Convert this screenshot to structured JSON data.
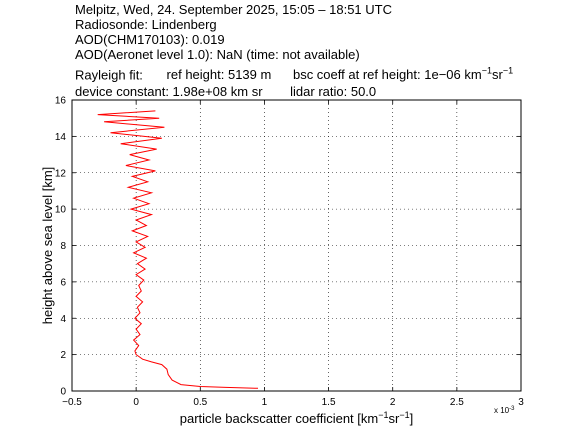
{
  "header": {
    "line1": "Melpitz, Wed, 24. September 2025, 15:05 – 18:51 UTC",
    "line2": "Radiosonde: Lindenberg",
    "line3": "AOD(CHM170103): 0.019",
    "line4": "AOD(Aeronet level 1.0): NaN   (time: not available)",
    "line5_a": "Rayleigh fit:",
    "line5_b": "ref height: 5139 m",
    "line5_c": "bsc coeff at ref height: 1e−06 km",
    "line5_c_exp1": "−1",
    "line5_c_mid": "sr",
    "line5_c_exp2": "−1",
    "line6_a": "device constant: 1.98e+08 km sr",
    "line6_b": "lidar ratio: 50.0"
  },
  "chart_data": {
    "type": "line",
    "title": "",
    "xlabel_main": "particle backscatter coefficient [km",
    "xlabel_exp1": "−1",
    "xlabel_mid": "sr",
    "xlabel_exp2": "−1",
    "xlabel_end": "]",
    "ylabel": "height above sea level [km]",
    "x_multiplier": "x 10",
    "x_multiplier_exp": "-3",
    "xlim": [
      -0.5,
      3
    ],
    "ylim": [
      0,
      16
    ],
    "xticks": [
      -0.5,
      0,
      0.5,
      1,
      1.5,
      2,
      2.5,
      3
    ],
    "xtick_labels": [
      "−0.5",
      "0",
      "0.5",
      "1",
      "1.5",
      "2",
      "2.5",
      "3"
    ],
    "yticks": [
      0,
      2,
      4,
      6,
      8,
      10,
      12,
      14,
      16
    ],
    "ytick_labels": [
      "0",
      "2",
      "4",
      "6",
      "8",
      "10",
      "12",
      "14",
      "16"
    ],
    "grid": true,
    "series_color": "#ff0000",
    "series": [
      {
        "name": "",
        "points": [
          [
            0.95,
            0.15
          ],
          [
            0.7,
            0.2
          ],
          [
            0.5,
            0.25
          ],
          [
            0.35,
            0.35
          ],
          [
            0.28,
            0.6
          ],
          [
            0.25,
            0.9
          ],
          [
            0.24,
            1.2
          ],
          [
            0.2,
            1.45
          ],
          [
            0.12,
            1.6
          ],
          [
            0.05,
            1.75
          ],
          [
            0.02,
            1.9
          ],
          [
            0.0,
            2.0
          ],
          [
            -0.01,
            2.2
          ],
          [
            0.02,
            2.5
          ],
          [
            -0.02,
            2.8
          ],
          [
            0.03,
            3.1
          ],
          [
            0.0,
            3.4
          ],
          [
            0.04,
            3.7
          ],
          [
            -0.01,
            4.0
          ],
          [
            0.03,
            4.3
          ],
          [
            0.01,
            4.6
          ],
          [
            0.05,
            4.9
          ],
          [
            0.0,
            5.2
          ],
          [
            0.04,
            5.5
          ],
          [
            0.02,
            5.8
          ],
          [
            0.06,
            6.1
          ],
          [
            0.0,
            6.4
          ],
          [
            0.07,
            6.7
          ],
          [
            0.01,
            7.0
          ],
          [
            0.08,
            7.3
          ],
          [
            -0.02,
            7.6
          ],
          [
            0.07,
            7.9
          ],
          [
            0.0,
            8.2
          ],
          [
            0.09,
            8.5
          ],
          [
            -0.03,
            8.8
          ],
          [
            0.08,
            9.1
          ],
          [
            0.0,
            9.4
          ],
          [
            0.12,
            9.7
          ],
          [
            -0.04,
            10.0
          ],
          [
            0.1,
            10.3
          ],
          [
            -0.02,
            10.6
          ],
          [
            0.12,
            10.9
          ],
          [
            -0.06,
            11.2
          ],
          [
            0.09,
            11.5
          ],
          [
            -0.03,
            11.8
          ],
          [
            0.15,
            12.1
          ],
          [
            -0.08,
            12.4
          ],
          [
            0.1,
            12.7
          ],
          [
            -0.05,
            13.0
          ],
          [
            0.16,
            13.3
          ],
          [
            -0.12,
            13.6
          ],
          [
            0.2,
            13.9
          ],
          [
            -0.2,
            14.2
          ],
          [
            0.22,
            14.5
          ],
          [
            -0.25,
            14.8
          ],
          [
            0.18,
            15.0
          ],
          [
            -0.3,
            15.2
          ],
          [
            0.15,
            15.4
          ]
        ]
      }
    ]
  }
}
